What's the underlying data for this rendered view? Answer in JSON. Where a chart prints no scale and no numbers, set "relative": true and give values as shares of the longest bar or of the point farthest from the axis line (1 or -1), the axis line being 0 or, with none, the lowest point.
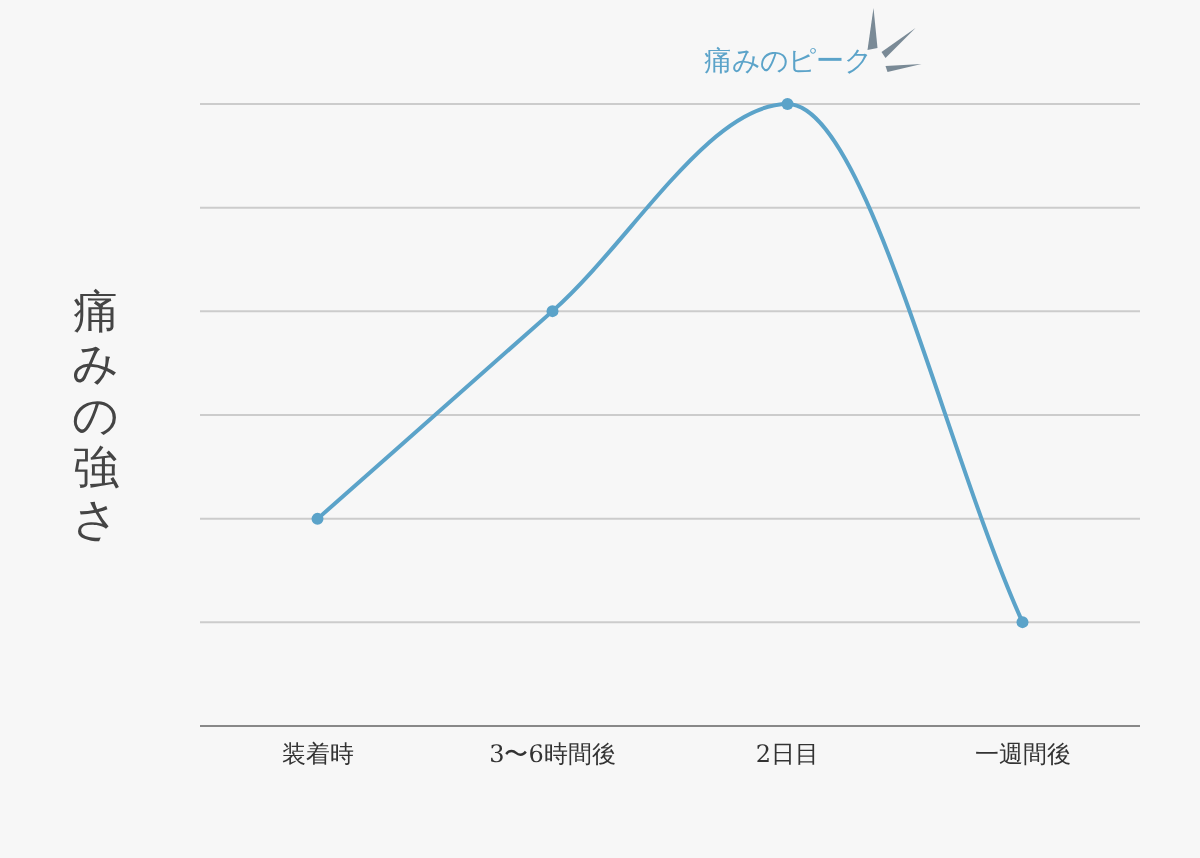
{
  "chart_data": {
    "type": "line",
    "ylabel": "痛みの強さ",
    "categories": [
      "装着時",
      "3〜6時間後",
      "2日目",
      "一週間後"
    ],
    "series": [
      {
        "color": "#5ba3c9",
        "values": [
          0.333,
          0.667,
          1,
          0.167
        ]
      }
    ],
    "relative": true,
    "grid": "y",
    "marker": "circle",
    "line_style": "solid",
    "annotations": [
      {
        "text": "痛みのピーク",
        "x": "2日目",
        "y": 1
      }
    ]
  }
}
